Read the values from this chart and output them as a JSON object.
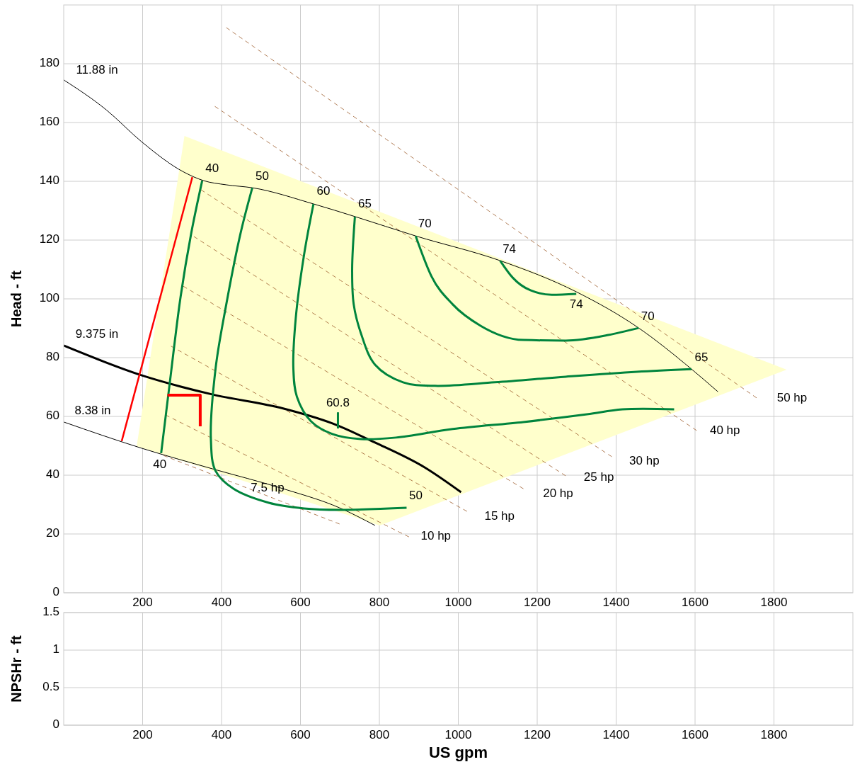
{
  "chart_data": [
    {
      "type": "line",
      "ylabel": "Head - ft",
      "xlim": [
        0,
        2000
      ],
      "ylim": [
        0,
        200
      ],
      "xticks": [
        200,
        400,
        600,
        800,
        1000,
        1200,
        1400,
        1600,
        1800
      ],
      "yticks": [
        0,
        20,
        40,
        60,
        80,
        100,
        120,
        140,
        160,
        180
      ],
      "grid": true,
      "series": [
        {
          "type": "area",
          "color": "#ffffcc",
          "x": [
            306,
            1832,
            801,
            185
          ],
          "values": [
            155.4,
            75.9,
            22.9,
            49.9
          ]
        },
        {
          "color": "#9c5a2a",
          "line_style": "dashed",
          "x": [
            412,
            1756
          ],
          "values": [
            192.3,
            66.3
          ]
        },
        {
          "color": "#9c5a2a",
          "line_style": "dashed",
          "x": [
            383,
            1604
          ],
          "values": [
            165.5,
            55.2
          ]
        },
        {
          "color": "#9c5a2a",
          "line_style": "dashed",
          "x": [
            348,
            1389
          ],
          "values": [
            137.1,
            46.3
          ]
        },
        {
          "color": "#9c5a2a",
          "line_style": "dashed",
          "x": [
            330,
            1272
          ],
          "values": [
            121.2,
            39.8
          ]
        },
        {
          "color": "#9c5a2a",
          "line_style": "dashed",
          "x": [
            303,
            1165
          ],
          "values": [
            104.3,
            35.4
          ]
        },
        {
          "color": "#9c5a2a",
          "line_style": "dashed",
          "x": [
            272,
            1022
          ],
          "values": [
            83.9,
            27.7
          ]
        },
        {
          "color": "#9c5a2a",
          "line_style": "dashed",
          "x": [
            258,
            875
          ],
          "values": [
            60.5,
            19.0
          ]
        },
        {
          "color": "#9c5a2a",
          "line_style": "dashed",
          "x": [
            253,
            699
          ],
          "values": [
            46.7,
            23.4
          ]
        },
        {
          "color": "#000000",
          "x": [
            0,
            108,
            197,
            305,
            355,
            412,
            478,
            633,
            738,
            892,
            1106,
            1299,
            1457,
            1591,
            1658
          ],
          "values": [
            174.5,
            164.3,
            153.5,
            143.1,
            140.2,
            138.8,
            137.8,
            132.3,
            128,
            121.4,
            113,
            102.4,
            90.1,
            76.1,
            68.4
          ]
        },
        {
          "color": "#000000",
          "x": [
            0,
            197,
            376,
            556,
            681,
            789,
            914,
            1007
          ],
          "values": [
            84.1,
            74,
            67.5,
            62.7,
            57.6,
            51.1,
            42.7,
            34.2
          ]
        },
        {
          "color": "#000000",
          "x": [
            0,
            197,
            376,
            556,
            699,
            789
          ],
          "values": [
            58.1,
            49.2,
            42.2,
            35.4,
            28.9,
            22.9
          ]
        },
        {
          "color": "#00843d",
          "x": [
            351,
            323,
            296,
            269,
            247
          ],
          "values": [
            140.2,
            122.2,
            100.5,
            71.6,
            47.5
          ]
        },
        {
          "color": "#00843d",
          "x": [
            478,
            448,
            412,
            385,
            373,
            385,
            430,
            520,
            609,
            699,
            869
          ],
          "values": [
            137.8,
            122.2,
            98.1,
            76.4,
            52.3,
            41.4,
            35.4,
            30.6,
            28.7,
            28.2,
            28.9
          ]
        },
        {
          "color": "#00843d",
          "x": [
            633,
            609,
            588,
            582,
            591,
            627,
            681,
            753,
            842,
            986,
            1165,
            1326,
            1416,
            1547
          ],
          "values": [
            132.3,
            114.9,
            93.3,
            76.4,
            66.7,
            58.3,
            54.0,
            52.3,
            52.8,
            55.7,
            58.1,
            60.7,
            62.4,
            62.4
          ]
        },
        {
          "color": "#00843d",
          "x": [
            738,
            731,
            735,
            753,
            789,
            860,
            941,
            1093,
            1272,
            1452,
            1591
          ],
          "values": [
            128,
            110.1,
            98.1,
            88.4,
            77.6,
            71.6,
            70.4,
            71.6,
            73.5,
            75.2,
            76.1
          ]
        },
        {
          "color": "#00843d",
          "x": [
            892,
            932,
            986,
            1057,
            1165,
            1272,
            1380,
            1457
          ],
          "values": [
            121.4,
            107.7,
            98.1,
            90.8,
            86.0,
            85.8,
            87.7,
            90.1
          ]
        },
        {
          "color": "#00843d",
          "x": [
            1106,
            1138,
            1183,
            1237,
            1299
          ],
          "values": [
            113,
            107.2,
            102.9,
            101.4,
            101.7
          ]
        },
        {
          "color": "#00843d",
          "x": [
            695,
            695
          ],
          "values": [
            61.4,
            55.9
          ]
        },
        {
          "color": "#ff0000",
          "x": [
            147,
            326
          ],
          "values": [
            51.6,
            141.4
          ]
        },
        {
          "color": "#ff0000",
          "x": [
            263,
            346,
            346
          ],
          "values": [
            67.2,
            67.2,
            56.6
          ]
        }
      ],
      "annotations": [
        {
          "text": "11.88 in",
          "x": 0,
          "y": 174.5
        },
        {
          "text": "9.375 in",
          "x": 0,
          "y": 84.1
        },
        {
          "text": "8.38 in",
          "x": 0,
          "y": 58.1
        },
        {
          "text": "40",
          "x": 351,
          "y": 140.2
        },
        {
          "text": "50",
          "x": 478,
          "y": 137.8
        },
        {
          "text": "60",
          "x": 633,
          "y": 132.3
        },
        {
          "text": "65",
          "x": 738,
          "y": 128
        },
        {
          "text": "70",
          "x": 892,
          "y": 121.4
        },
        {
          "text": "74",
          "x": 1106,
          "y": 113
        },
        {
          "text": "74",
          "x": 1299,
          "y": 101.7
        },
        {
          "text": "70",
          "x": 1457,
          "y": 90.1
        },
        {
          "text": "65",
          "x": 1591,
          "y": 76.1
        },
        {
          "text": "40",
          "x": 247,
          "y": 47.5
        },
        {
          "text": "50",
          "x": 869,
          "y": 28.9
        },
        {
          "text": "60.8",
          "x": 695,
          "y": 61.4
        },
        "7.5 hp",
        {
          "text": "10 hp",
          "x": 875,
          "y": 19.0
        },
        {
          "text": "15 hp",
          "x": 1022,
          "y": 27.7
        },
        {
          "text": "20 hp",
          "x": 1165,
          "y": 35.4
        },
        {
          "text": "25 hp",
          "x": 1272,
          "y": 39.8
        },
        {
          "text": "30 hp",
          "x": 1389,
          "y": 46.3
        },
        {
          "text": "40 hp",
          "x": 1604,
          "y": 55.2
        },
        {
          "text": "50 hp",
          "x": 1756,
          "y": 66.3
        }
      ]
    },
    {
      "type": "line",
      "xlabel": "US gpm",
      "ylabel": "NPSHr - ft",
      "xlim": [
        0,
        2000
      ],
      "ylim": [
        0,
        1.5
      ],
      "xticks": [
        200,
        400,
        600,
        800,
        1000,
        1200,
        1400,
        1600,
        1800
      ],
      "yticks": [
        0,
        0.5,
        1,
        1.5
      ],
      "grid": true
    }
  ]
}
